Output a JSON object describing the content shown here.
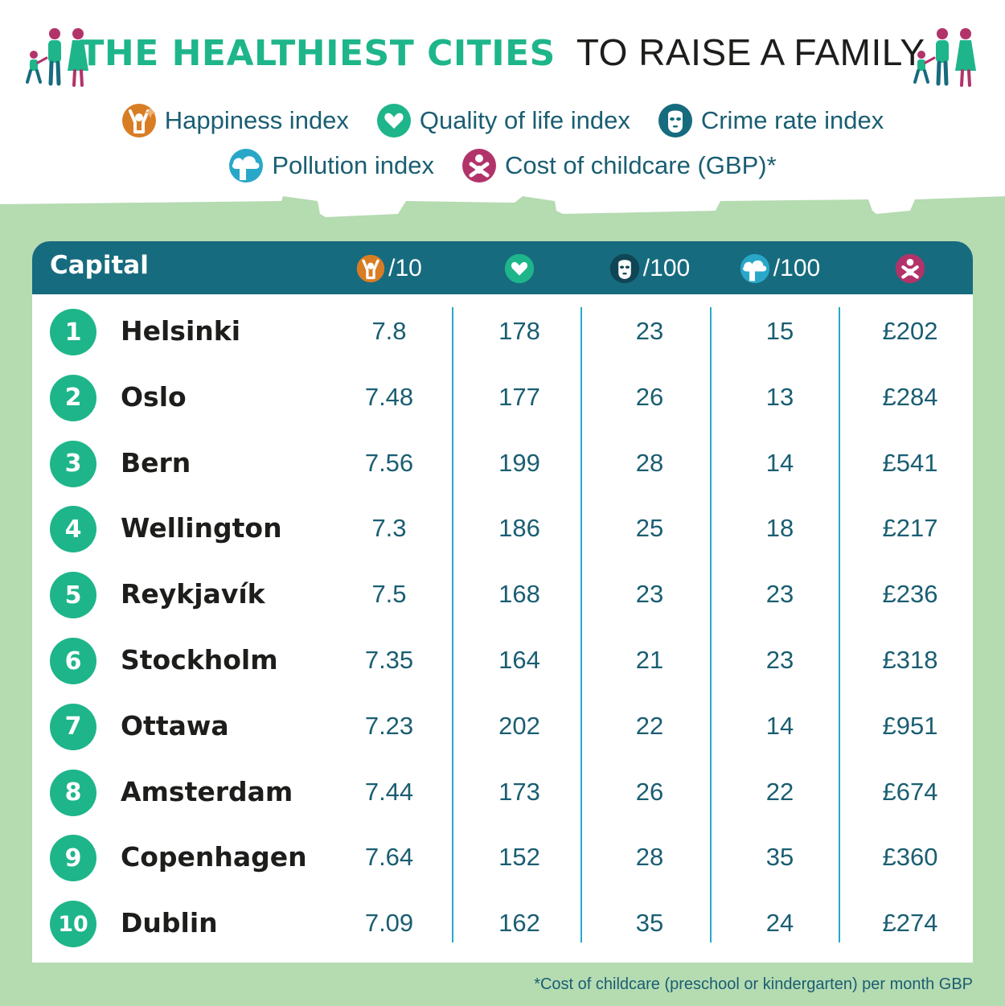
{
  "header": {
    "title_bold": "THE HEALTHIEST CITIES",
    "title_light": "TO RAISE A FAMILY"
  },
  "legend": [
    {
      "icon": "happiness-icon",
      "label": "Happiness index",
      "color": "#d97d25"
    },
    {
      "icon": "heart-icon",
      "label": "Quality of life index",
      "color": "#1eb58a"
    },
    {
      "icon": "mask-icon",
      "label": "Crime rate index",
      "color": "#176b7e"
    },
    {
      "icon": "pollution-icon",
      "label": "Pollution index",
      "color": "#29a7c9"
    },
    {
      "icon": "baby-icon",
      "label": "Cost of childcare (GBP)*",
      "color": "#b2336a"
    }
  ],
  "table": {
    "capital_header": "Capital",
    "happiness_suffix": "/10",
    "crime_suffix": "/100",
    "pollution_suffix": "/100"
  },
  "chart_data": {
    "type": "table",
    "columns": [
      "Capital",
      "Happiness index",
      "Quality of life index",
      "Crime rate index",
      "Pollution index",
      "Cost of childcare (GBP)*"
    ],
    "rows": [
      {
        "rank": "1",
        "city": "Helsinki",
        "happiness": "7.8",
        "quality": "178",
        "crime": "23",
        "pollution": "15",
        "childcare": "£202"
      },
      {
        "rank": "2",
        "city": "Oslo",
        "happiness": "7.48",
        "quality": "177",
        "crime": "26",
        "pollution": "13",
        "childcare": "£284"
      },
      {
        "rank": "3",
        "city": "Bern",
        "happiness": "7.56",
        "quality": "199",
        "crime": "28",
        "pollution": "14",
        "childcare": "£541"
      },
      {
        "rank": "4",
        "city": "Wellington",
        "happiness": "7.3",
        "quality": "186",
        "crime": "25",
        "pollution": "18",
        "childcare": "£217"
      },
      {
        "rank": "5",
        "city": "Reykjavík",
        "happiness": "7.5",
        "quality": "168",
        "crime": "23",
        "pollution": "23",
        "childcare": "£236"
      },
      {
        "rank": "6",
        "city": "Stockholm",
        "happiness": "7.35",
        "quality": "164",
        "crime": "21",
        "pollution": "23",
        "childcare": "£318"
      },
      {
        "rank": "7",
        "city": "Ottawa",
        "happiness": "7.23",
        "quality": "202",
        "crime": "22",
        "pollution": "14",
        "childcare": "£951"
      },
      {
        "rank": "8",
        "city": "Amsterdam",
        "happiness": "7.44",
        "quality": "173",
        "crime": "26",
        "pollution": "22",
        "childcare": "£674"
      },
      {
        "rank": "9",
        "city": "Copenhagen",
        "happiness": "7.64",
        "quality": "152",
        "crime": "28",
        "pollution": "35",
        "childcare": "£360"
      },
      {
        "rank": "10",
        "city": "Dublin",
        "happiness": "7.09",
        "quality": "162",
        "crime": "35",
        "pollution": "24",
        "childcare": "£274"
      }
    ]
  },
  "footnote": "*Cost of childcare (preschool or kindergarten) per month GBP",
  "colors": {
    "accent_green": "#1eb58a",
    "header_teal": "#176b7e",
    "band_green": "#b5dbb1",
    "divider_blue": "#29a7c9",
    "value_text": "#1a5e72"
  }
}
